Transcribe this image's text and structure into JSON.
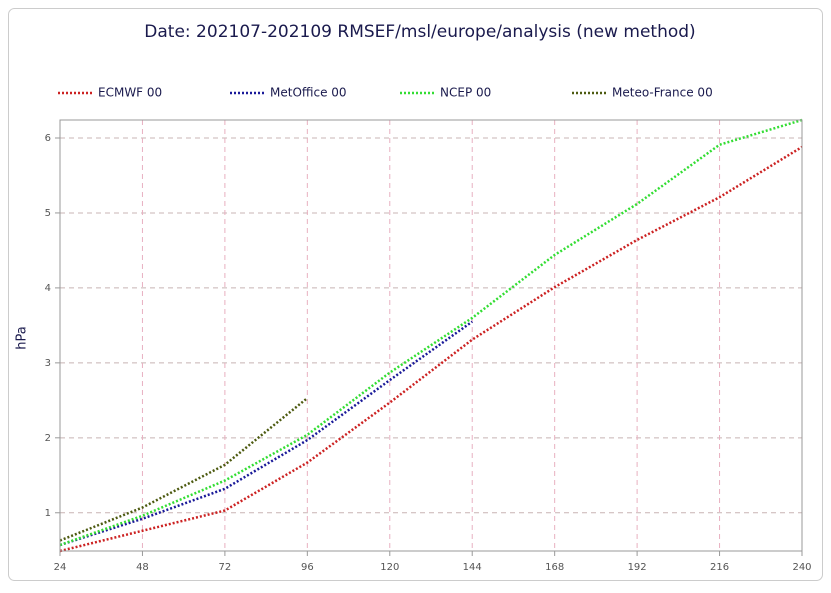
{
  "chart_data": {
    "type": "line",
    "title": "Date: 202107-202109 RMSEF/msl/europe/analysis (new method)",
    "y_label": "hPa",
    "x": [
      24,
      48,
      72,
      96,
      120,
      144,
      168,
      192,
      216,
      240
    ],
    "xlim": [
      24,
      240
    ],
    "xticks": [
      24,
      48,
      72,
      96,
      120,
      144,
      168,
      192,
      216,
      240
    ],
    "ylim": [
      0.49,
      6.24
    ],
    "yticks": [
      1,
      2,
      3,
      4,
      5,
      6
    ],
    "grid": true,
    "legend": "top",
    "series": [
      {
        "name": "ECMWF 00",
        "color": "#cc2222",
        "values": [
          0.49,
          0.76,
          1.03,
          1.67,
          2.47,
          3.31,
          4.01,
          4.64,
          5.21,
          5.88
        ]
      },
      {
        "name": "MetOffice 00",
        "color": "#1a1a99",
        "values": [
          0.57,
          0.92,
          1.32,
          1.97,
          2.77,
          3.55,
          null,
          null,
          null,
          null
        ]
      },
      {
        "name": "NCEP 00",
        "color": "#33dd33",
        "values": [
          0.57,
          0.96,
          1.43,
          2.04,
          2.87,
          3.6,
          4.44,
          5.12,
          5.91,
          6.24
        ]
      },
      {
        "name": "Meteo-France 00",
        "color": "#4d5a10",
        "values": [
          0.63,
          1.07,
          1.64,
          2.53,
          null,
          null,
          null,
          null,
          null,
          null
        ]
      }
    ]
  }
}
